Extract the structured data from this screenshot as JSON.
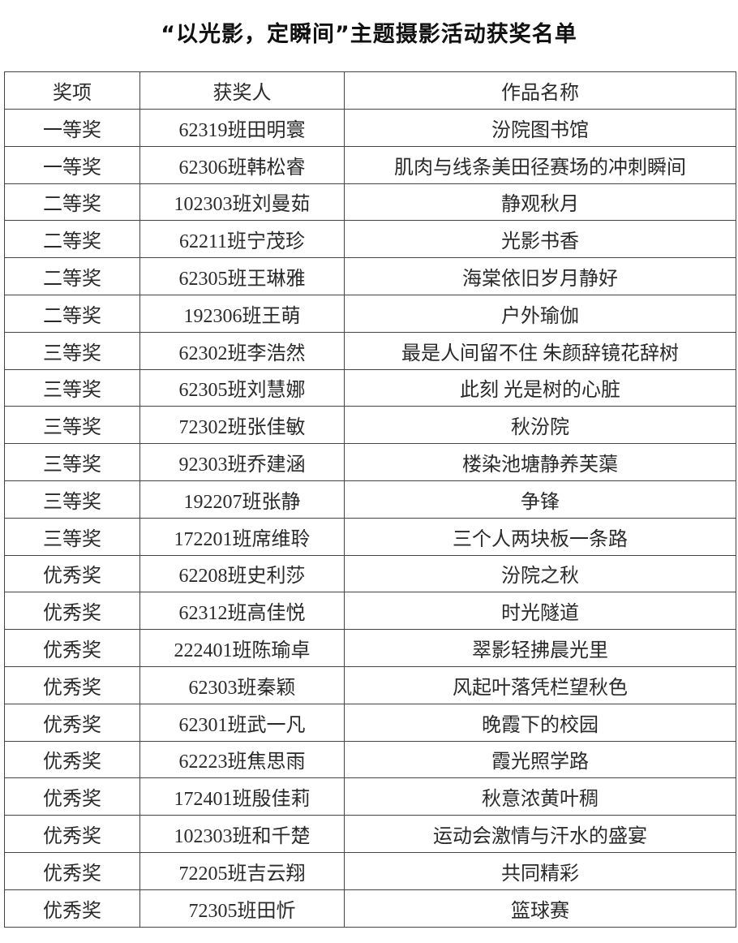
{
  "title": "“以光影，定瞬间”主题摄影活动获奖名单",
  "headers": [
    "奖项",
    "获奖人",
    "作品名称"
  ],
  "rows": [
    [
      "一等奖",
      "62319班田明寰",
      "汾院图书馆"
    ],
    [
      "一等奖",
      "62306班韩松睿",
      "肌肉与线条美田径赛场的冲刺瞬间"
    ],
    [
      "二等奖",
      "102303班刘曼茹",
      "静观秋月"
    ],
    [
      "二等奖",
      "62211班宁茂珍",
      "光影书香"
    ],
    [
      "二等奖",
      "62305班王琳雅",
      "海棠依旧岁月静好"
    ],
    [
      "二等奖",
      "192306班王萌",
      "户外瑜伽"
    ],
    [
      "三等奖",
      "62302班李浩然",
      "最是人间留不住  朱颜辞镜花辞树"
    ],
    [
      "三等奖",
      "62305班刘慧娜",
      "此刻  光是树的心脏"
    ],
    [
      "三等奖",
      "72302班张佳敏",
      "秋汾院"
    ],
    [
      "三等奖",
      "92303班乔建涵",
      "楼染池塘静养芙蕖"
    ],
    [
      "三等奖",
      "192207班张静",
      "争锋"
    ],
    [
      "三等奖",
      "172201班席维聆",
      "三个人两块板一条路"
    ],
    [
      "优秀奖",
      "62208班史利莎",
      "汾院之秋"
    ],
    [
      "优秀奖",
      "62312班高佳悦",
      "时光隧道"
    ],
    [
      "优秀奖",
      "222401班陈瑜卓",
      "翠影轻拂晨光里"
    ],
    [
      "优秀奖",
      "62303班秦颖",
      "风起叶落凭栏望秋色"
    ],
    [
      "优秀奖",
      "62301班武一凡",
      "晚霞下的校园"
    ],
    [
      "优秀奖",
      "62223班焦思雨",
      "霞光照学路"
    ],
    [
      "优秀奖",
      "172401班殷佳莉",
      "秋意浓黄叶稠"
    ],
    [
      "优秀奖",
      "102303班和千楚",
      "运动会激情与汗水的盛宴"
    ],
    [
      "优秀奖",
      "72205班吉云翔",
      "共同精彩"
    ],
    [
      "优秀奖",
      "72305班田忻",
      "篮球赛"
    ]
  ]
}
